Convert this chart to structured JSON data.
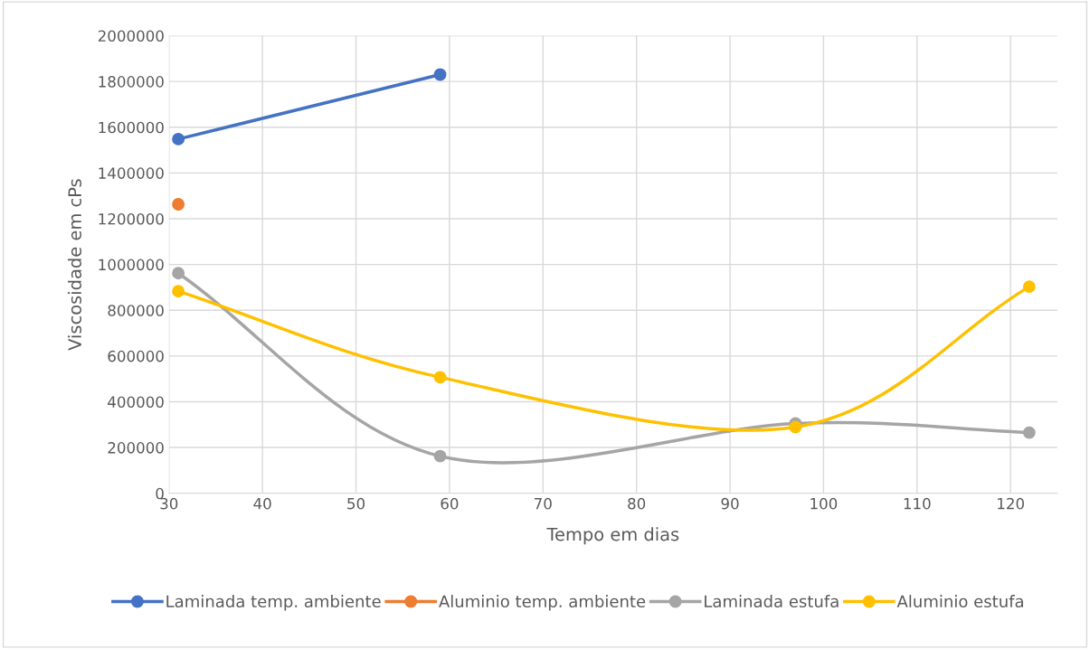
{
  "chart_data": {
    "type": "line",
    "xlabel": "Tempo em dias",
    "ylabel": "Viscosidade em cPs",
    "series": [
      {
        "name": "Laminada temp. ambiente",
        "color": "#4472c4",
        "x": [
          31,
          59
        ],
        "values": [
          1548000,
          1830000
        ]
      },
      {
        "name": "Aluminio temp. ambiente",
        "color": "#ed7d31",
        "x": [
          31
        ],
        "values": [
          1263000
        ]
      },
      {
        "name": "Laminada estufa",
        "color": "#a5a5a5",
        "x": [
          31,
          59,
          97,
          122
        ],
        "values": [
          962000,
          162000,
          305000,
          265000
        ]
      },
      {
        "name": "Aluminio estufa",
        "color": "#ffc000",
        "x": [
          31,
          59,
          97,
          122
        ],
        "values": [
          883000,
          507000,
          289000,
          903000
        ]
      }
    ],
    "xlim": [
      30,
      125
    ],
    "xticks": [
      30,
      40,
      50,
      60,
      70,
      80,
      90,
      100,
      110,
      120
    ],
    "ylim": [
      0,
      2000000
    ],
    "yticks": [
      0,
      200000,
      400000,
      600000,
      800000,
      1000000,
      1200000,
      1400000,
      1600000,
      1800000,
      2000000
    ],
    "grid": true,
    "legend": "bottom",
    "marker": "circle",
    "line_style": "solid"
  }
}
